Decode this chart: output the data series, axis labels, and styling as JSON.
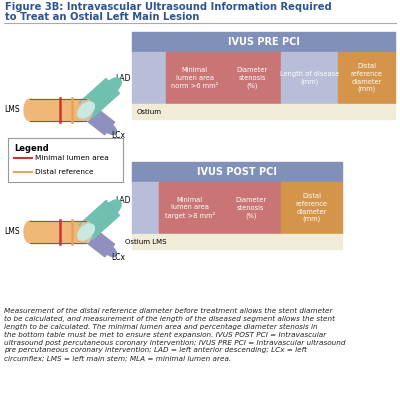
{
  "title_line1": "Figure 3B: Intravascular Ultrasound Information Required",
  "title_line2": "to Treat an Ostial Left Main Lesion",
  "title_color": "#2E5591",
  "title_fontsize": 7.2,
  "background_color": "#ffffff",
  "pre_pci_header": "IVUS PRE PCI",
  "pre_pci_cols": [
    "",
    "Minimal\nlumen area\nnorm >6 mm²",
    "Diameter\nstenosis\n(%)",
    "Length of disease\n(mm)",
    "Distal\nreference\ndiameter\n(mm)"
  ],
  "pre_pci_row": [
    "Ostium",
    "",
    "",
    "",
    ""
  ],
  "pre_pci_header_color": "#8090B8",
  "pre_pci_col_colors": [
    "#B8BDD8",
    "#C97575",
    "#C97575",
    "#B8BDD8",
    "#D4944A"
  ],
  "pre_pci_row_color": "#F0ECD8",
  "post_pci_header": "IVUS POST PCI",
  "post_pci_cols": [
    "",
    "Minimal\nlumen area\ntarget >8 mm²",
    "Diameter\nstenosis\n(%)",
    "Distal\nreference\ndiameter\n(mm)"
  ],
  "post_pci_row": [
    "Ostium LMS",
    "",
    "",
    ""
  ],
  "post_pci_header_color": "#8090B8",
  "post_pci_col_colors": [
    "#B8BDD8",
    "#C97575",
    "#C97575",
    "#D4944A"
  ],
  "post_pci_row_color": "#F0ECD8",
  "caption": "Measurement of the distal reference diameter before treatment allows the stent diameter\nto be calculated, and measurement of the length of the diseased segment allows the stent\nlength to be calculated. The minimal lumen area and percentage diameter stenosis in\nthe bottom table must be met to ensure stent expansion. IVUS POST PCI = Intravascular\nultrasound post percutaneous coronary intervention; IVUS PRE PCI = Intravascular ultrasound\npre percutaneous coronary intervention; LAD = left anterior descending; LCx = left\ncircumflex; LMS = left main stem; MLA = minimal lumen area.",
  "caption_fontsize": 5.2,
  "legend_title": "Legend",
  "legend_items": [
    "Minimal lumen area",
    "Distal reference"
  ],
  "legend_colors": [
    "#CC3333",
    "#E8A060"
  ],
  "vessel_lms_color": "#F0B878",
  "vessel_lad_color": "#70C0B0",
  "vessel_lcx_color": "#9090C0",
  "vessel_outline": "#666666"
}
